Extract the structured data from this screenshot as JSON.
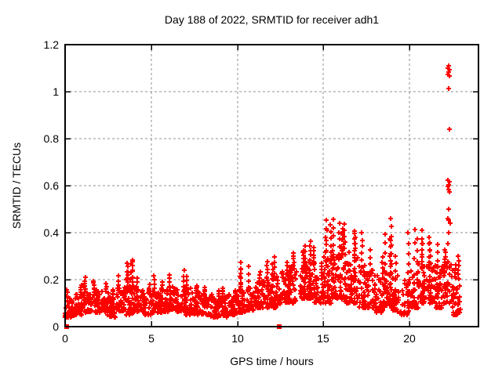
{
  "chart_data": {
    "type": "scatter",
    "title": "Day 188 of 2022, SRMTID for receiver adh1",
    "xlabel": "GPS time / hours",
    "ylabel": "SRMTID / TECUs",
    "xlim": [
      0,
      24
    ],
    "ylim": [
      0,
      1.2
    ],
    "xtick_values": [
      0,
      5,
      10,
      15,
      20
    ],
    "xtick_labels": [
      "0",
      "5",
      "10",
      "15",
      "20"
    ],
    "ytick_values": [
      0,
      0.2,
      0.4,
      0.6,
      0.8,
      1,
      1.2
    ],
    "ytick_labels": [
      "0",
      "0.2",
      "0.4",
      "0.6",
      "0.8",
      "1",
      "1.2"
    ],
    "grid": true,
    "legend": "none",
    "marker": "plus",
    "marker_color": "#ff0000",
    "grid_color": "#909090",
    "border_color": "#000000",
    "text_color": "#000000",
    "bg": "#ffffff",
    "seed": 42,
    "zero_squares": [
      [
        0.1,
        0.0
      ],
      [
        12.45,
        0.0
      ]
    ],
    "outliers": [
      [
        22.28,
        1.11
      ],
      [
        22.24,
        1.1
      ],
      [
        22.32,
        1.093
      ],
      [
        22.27,
        1.085
      ],
      [
        22.23,
        1.075
      ],
      [
        22.3,
        1.068
      ],
      [
        22.28,
        1.012
      ],
      [
        22.3,
        0.84
      ],
      [
        22.24,
        0.625
      ],
      [
        22.3,
        0.615
      ],
      [
        22.26,
        0.605
      ],
      [
        22.22,
        0.596
      ],
      [
        22.28,
        0.585
      ],
      [
        22.31,
        0.575
      ],
      [
        22.27,
        0.5
      ],
      [
        22.23,
        0.46
      ],
      [
        22.29,
        0.452
      ],
      [
        22.34,
        0.44
      ],
      [
        22.27,
        0.4
      ],
      [
        22.24,
        0.352
      ]
    ],
    "band_bins": [
      [
        0.0,
        0.5,
        0.04,
        0.12,
        38,
        [
          0.16
        ]
      ],
      [
        0.5,
        0.5,
        0.05,
        0.14,
        38,
        [
          0.18
        ]
      ],
      [
        1.0,
        0.5,
        0.06,
        0.17,
        40,
        [
          0.21
        ]
      ],
      [
        1.5,
        0.5,
        0.06,
        0.16,
        38,
        [
          0.2
        ]
      ],
      [
        2.0,
        0.5,
        0.06,
        0.16,
        38,
        [
          0.19
        ]
      ],
      [
        2.5,
        0.5,
        0.04,
        0.13,
        36,
        [
          0.16
        ]
      ],
      [
        3.0,
        0.5,
        0.06,
        0.17,
        38,
        [
          0.22
        ]
      ],
      [
        3.5,
        0.5,
        0.05,
        0.18,
        40,
        [
          0.29,
          0.28,
          0.275,
          0.27,
          0.26
        ]
      ],
      [
        4.0,
        0.5,
        0.06,
        0.16,
        38,
        [
          0.21
        ]
      ],
      [
        4.5,
        0.5,
        0.05,
        0.15,
        36,
        [
          0.18
        ]
      ],
      [
        5.0,
        0.5,
        0.06,
        0.16,
        38,
        [
          0.22
        ]
      ],
      [
        5.5,
        0.5,
        0.06,
        0.16,
        36,
        [
          0.19
        ]
      ],
      [
        6.0,
        0.5,
        0.07,
        0.17,
        38,
        [
          0.22
        ]
      ],
      [
        6.5,
        0.5,
        0.06,
        0.16,
        38,
        [
          0.24
        ]
      ],
      [
        7.0,
        0.5,
        0.05,
        0.17,
        38,
        [
          0.22
        ]
      ],
      [
        7.5,
        0.5,
        0.05,
        0.15,
        36,
        [
          0.18
        ]
      ],
      [
        8.0,
        0.5,
        0.05,
        0.14,
        38,
        [
          0.17
        ]
      ],
      [
        8.5,
        0.5,
        0.04,
        0.13,
        36,
        [
          0.16
        ]
      ],
      [
        9.0,
        0.5,
        0.04,
        0.13,
        36,
        [
          0.17
        ]
      ],
      [
        9.5,
        0.5,
        0.05,
        0.14,
        36,
        [
          0.16
        ]
      ],
      [
        10.0,
        0.5,
        0.06,
        0.16,
        38,
        [
          0.28,
          0.25
        ]
      ],
      [
        10.5,
        0.5,
        0.07,
        0.18,
        38,
        [
          0.26
        ]
      ],
      [
        11.0,
        0.5,
        0.08,
        0.2,
        38,
        [
          0.24
        ]
      ],
      [
        11.5,
        0.5,
        0.08,
        0.21,
        38,
        [
          0.28
        ]
      ],
      [
        12.0,
        0.5,
        0.08,
        0.22,
        40,
        [
          0.3,
          0.27
        ]
      ],
      [
        12.5,
        0.5,
        0.1,
        0.24,
        38,
        [
          0.28
        ]
      ],
      [
        13.0,
        0.5,
        0.1,
        0.26,
        40,
        [
          0.32
        ]
      ],
      [
        13.5,
        0.5,
        0.12,
        0.28,
        42,
        [
          0.35,
          0.33
        ]
      ],
      [
        14.0,
        0.5,
        0.12,
        0.28,
        42,
        [
          0.37,
          0.34
        ]
      ],
      [
        14.5,
        0.5,
        0.1,
        0.22,
        38,
        [
          0.27
        ]
      ],
      [
        15.0,
        0.5,
        0.1,
        0.3,
        42,
        [
          0.46,
          0.44,
          0.42
        ]
      ],
      [
        15.5,
        0.5,
        0.12,
        0.33,
        44,
        [
          0.46,
          0.44
        ]
      ],
      [
        16.0,
        0.5,
        0.1,
        0.33,
        44,
        [
          0.44,
          0.42,
          0.4
        ]
      ],
      [
        16.5,
        0.5,
        0.1,
        0.3,
        42,
        [
          0.41,
          0.4
        ]
      ],
      [
        17.0,
        0.5,
        0.08,
        0.27,
        40,
        [
          0.4
        ]
      ],
      [
        17.5,
        0.5,
        0.08,
        0.25,
        38,
        [
          0.33
        ]
      ],
      [
        18.0,
        0.5,
        0.06,
        0.22,
        38,
        [
          0.3
        ]
      ],
      [
        18.5,
        0.5,
        0.08,
        0.24,
        40,
        [
          0.46,
          0.43,
          0.4,
          0.37
        ]
      ],
      [
        19.0,
        0.5,
        0.06,
        0.22,
        38,
        [
          0.3
        ]
      ],
      [
        19.5,
        0.5,
        0.05,
        0.2,
        36,
        [
          0.4
        ]
      ],
      [
        20.0,
        0.5,
        0.08,
        0.24,
        38,
        [
          0.42,
          0.38
        ]
      ],
      [
        20.5,
        0.5,
        0.1,
        0.27,
        40,
        [
          0.41,
          0.38
        ]
      ],
      [
        21.0,
        0.5,
        0.1,
        0.29,
        42,
        [
          0.38,
          0.36
        ]
      ],
      [
        21.5,
        0.5,
        0.08,
        0.27,
        40,
        [
          0.35
        ]
      ],
      [
        22.0,
        0.5,
        0.1,
        0.28,
        36,
        [
          0.33
        ]
      ],
      [
        22.5,
        0.42,
        0.05,
        0.22,
        40,
        [
          0.3,
          0.27
        ]
      ]
    ]
  }
}
